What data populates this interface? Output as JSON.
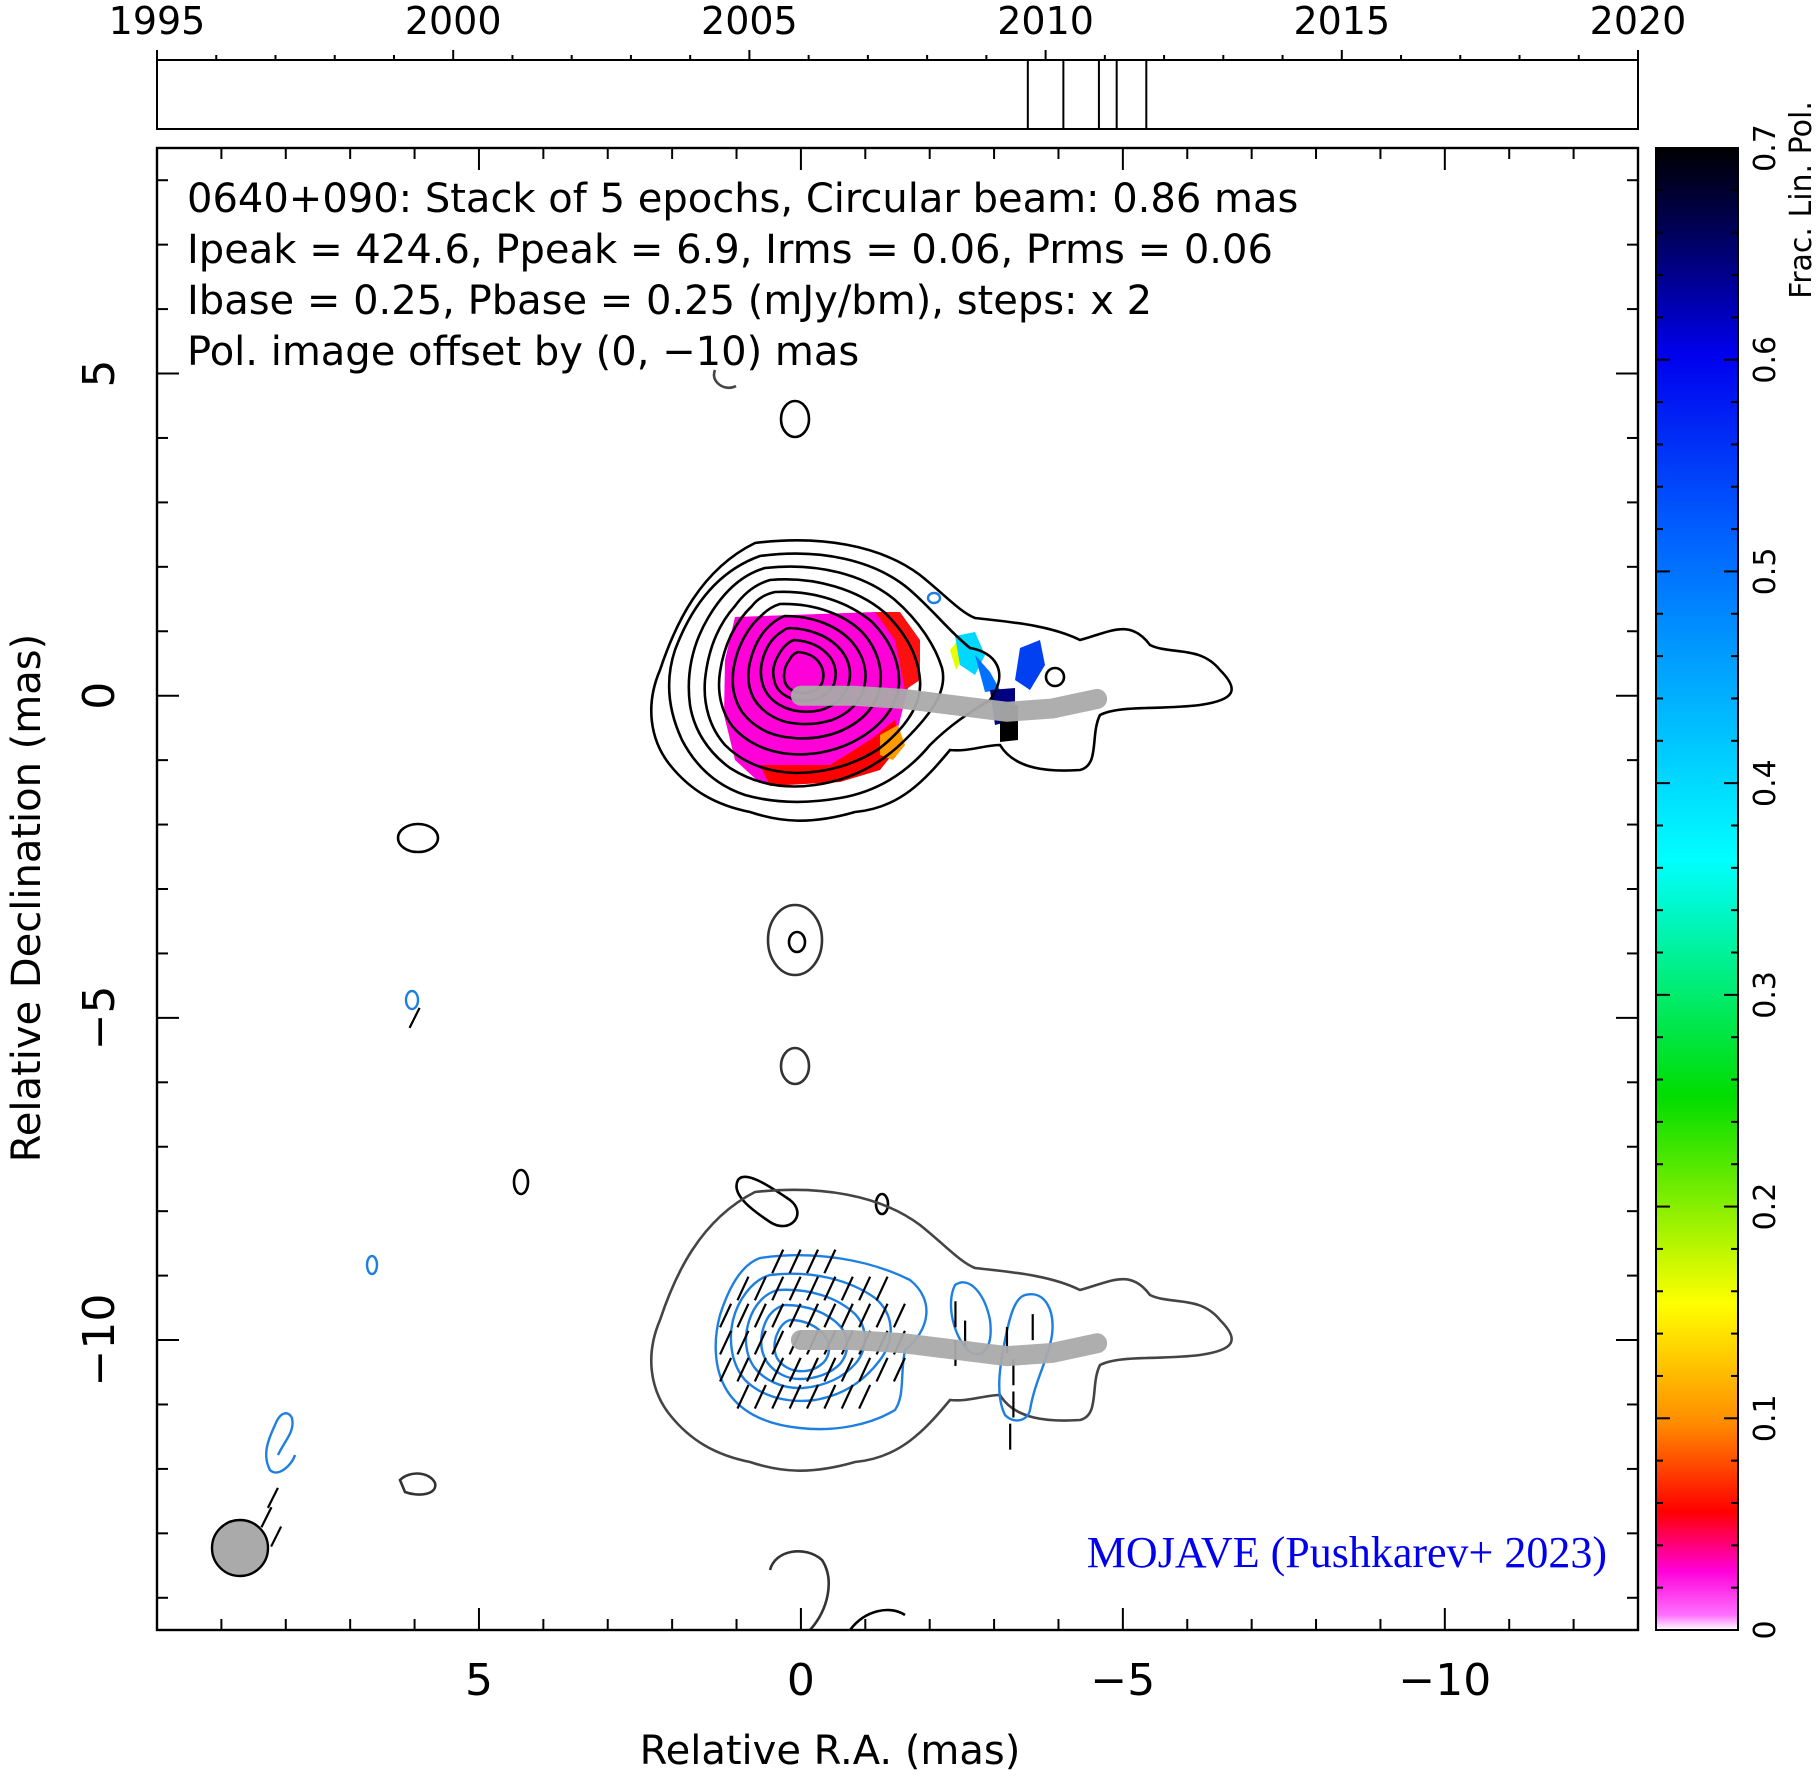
{
  "chart_data": {
    "type": "contour",
    "source": "0640+090",
    "info_lines": [
      "0640+090: Stack of 5 epochs, Circular beam: 0.86 mas",
      "Ipeak = 424.6, Ppeak = 6.9, Irms = 0.06, Prms = 0.06",
      "Ibase = 0.25, Pbase = 0.25 (mJy/bm), steps: x 2",
      "Pol. image offset by (0, −10) mas"
    ],
    "pol_offset_mas": [
      0,
      -10
    ],
    "epochs": {
      "axis_range": [
        1995,
        2020
      ],
      "tick_labels": [
        "1995",
        "2000",
        "2005",
        "2010",
        "2015",
        "2020"
      ],
      "ticks": [
        1995,
        2000,
        2005,
        2010,
        2015,
        2020
      ],
      "epoch_marks": [
        2009.7,
        2010.3,
        2010.9,
        2011.2,
        2011.7
      ]
    },
    "xlabel": "Relative R.A. (mas)",
    "ylabel": "Relative Declination (mas)",
    "xlim": [
      10,
      -13
    ],
    "ylim": [
      -14.5,
      8.5
    ],
    "x_ticks": [
      5,
      0,
      -5,
      -10
    ],
    "x_tick_labels": [
      "5",
      "0",
      "−5",
      "−10"
    ],
    "y_ticks": [
      5,
      0,
      -5,
      -10
    ],
    "y_tick_labels": [
      "5",
      "0",
      "−5",
      "−10"
    ],
    "beam_diameter_mas": 0.86,
    "ridge_line": [
      [
        0,
        0
      ],
      [
        -0.8,
        0.0
      ],
      [
        -1.6,
        -0.05
      ],
      [
        -2.4,
        -0.15
      ],
      [
        -3.2,
        -0.25
      ],
      [
        -3.9,
        -0.2
      ],
      [
        -4.6,
        -0.05
      ]
    ],
    "colorbar": {
      "label": "Frac. Lin. Pol.",
      "range": [
        0,
        0.7
      ],
      "ticks": [
        0,
        0.1,
        0.2,
        0.3,
        0.4,
        0.5,
        0.6,
        0.7
      ],
      "tick_labels": [
        "0",
        "0.1",
        "0.2",
        "0.3",
        "0.4",
        "0.5",
        "0.6",
        "0.7"
      ]
    },
    "credit": "MOJAVE (Pushkarev+ 2023)",
    "colors": {
      "total_intensity_contour": "#000000",
      "polarization_contour": "#1e7fe0",
      "ridge": "#aaaaaa",
      "credit": "#0000ee",
      "beam": "#aaaaaa"
    }
  }
}
